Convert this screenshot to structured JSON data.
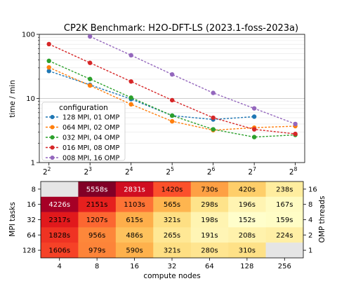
{
  "chart_data": [
    {
      "type": "line",
      "title": "CP2K Benchmark: H2O-DFT-LS (2023.1-foss-2023a)",
      "xlabel": "",
      "ylabel": "time / min",
      "xscale": "log2",
      "yscale": "log10",
      "x_tick_labels": [
        {
          "base": "2",
          "exp": "2"
        },
        {
          "base": "2",
          "exp": "3"
        },
        {
          "base": "2",
          "exp": "4"
        },
        {
          "base": "2",
          "exp": "5"
        },
        {
          "base": "2",
          "exp": "6"
        },
        {
          "base": "2",
          "exp": "7"
        },
        {
          "base": "2",
          "exp": "8"
        }
      ],
      "y_tick_labels": [
        "1",
        "10",
        "100"
      ],
      "ylim": [
        1,
        100
      ],
      "grid": "horizontal",
      "legend": {
        "title": "configuration",
        "placement": "lower-left"
      },
      "series": [
        {
          "name": "128 MPI, 01 OMP",
          "color": "#1f77b4",
          "x": [
            4,
            8,
            16,
            32,
            64,
            128
          ],
          "y": [
            26.8,
            16.3,
            9.8,
            5.4,
            4.7,
            5.2
          ]
        },
        {
          "name": "064 MPI, 02 OMP",
          "color": "#ff7f0e",
          "x": [
            4,
            8,
            16,
            32,
            64,
            128,
            256
          ],
          "y": [
            30.5,
            15.9,
            8.1,
            4.4,
            3.2,
            3.5,
            3.7
          ]
        },
        {
          "name": "032 MPI, 04 OMP",
          "color": "#2ca02c",
          "x": [
            4,
            8,
            16,
            32,
            64,
            128,
            256
          ],
          "y": [
            38.6,
            20.1,
            10.3,
            5.4,
            3.3,
            2.5,
            2.7
          ]
        },
        {
          "name": "016 MPI, 08 OMP",
          "color": "#d62728",
          "x": [
            4,
            8,
            16,
            32,
            64,
            128,
            256
          ],
          "y": [
            70.4,
            35.9,
            18.4,
            9.4,
            5.0,
            3.3,
            2.8
          ]
        },
        {
          "name": "008 MPI, 16 OMP",
          "color": "#9467bd",
          "x": [
            8,
            16,
            32,
            64,
            128,
            256
          ],
          "y": [
            92.6,
            47.2,
            23.7,
            12.2,
            7.0,
            4.0
          ]
        }
      ]
    },
    {
      "type": "heatmap",
      "xlabel": "compute nodes",
      "ylabel": "MPI tasks",
      "ylabel_right": "OMP threads",
      "x_categories": [
        "4",
        "8",
        "16",
        "32",
        "64",
        "128",
        "256"
      ],
      "y_categories": [
        "8",
        "16",
        "32",
        "64",
        "128"
      ],
      "y_categories_right": [
        "16",
        "8",
        "4",
        "2",
        "1"
      ],
      "values": [
        [
          null,
          5558,
          2831,
          1420,
          730,
          420,
          238
        ],
        [
          4226,
          2151,
          1103,
          565,
          298,
          196,
          167
        ],
        [
          2317,
          1207,
          615,
          321,
          198,
          152,
          159
        ],
        [
          1828,
          956,
          486,
          265,
          191,
          208,
          224
        ],
        [
          1606,
          979,
          590,
          321,
          280,
          310,
          null
        ]
      ],
      "cell_labels": [
        [
          "",
          "5558s",
          "2831s",
          "1420s",
          "730s",
          "420s",
          "238s"
        ],
        [
          "4226s",
          "2151s",
          "1103s",
          "565s",
          "298s",
          "196s",
          "167s"
        ],
        [
          "2317s",
          "1207s",
          "615s",
          "321s",
          "198s",
          "152s",
          "159s"
        ],
        [
          "1828s",
          "956s",
          "486s",
          "265s",
          "191s",
          "208s",
          "224s"
        ],
        [
          "1606s",
          "979s",
          "590s",
          "321s",
          "280s",
          "310s",
          ""
        ]
      ],
      "colormap": "YlOrRd (log)",
      "missing_color": "#e5e5e5"
    }
  ]
}
